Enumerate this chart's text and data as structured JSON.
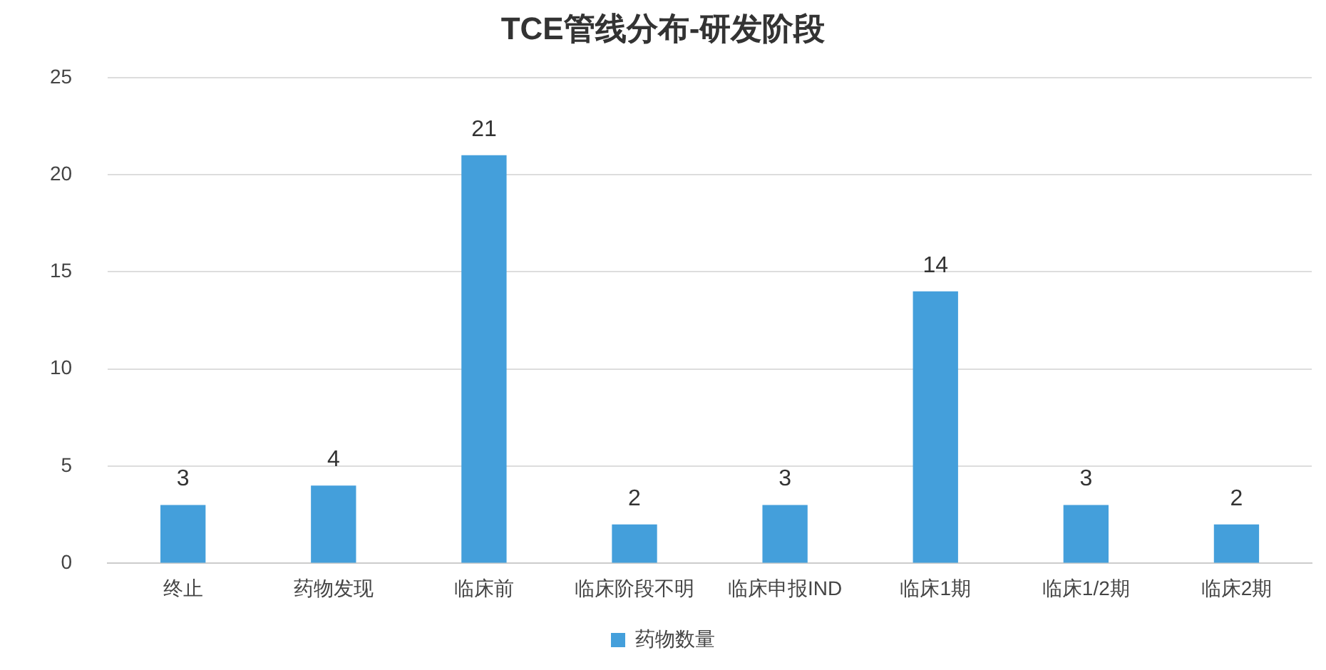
{
  "chart_data": {
    "type": "bar",
    "title": "TCE管线分布-研发阶段",
    "categories": [
      "终止",
      "药物发现",
      "临床前",
      "临床阶段不明",
      "临床申报IND",
      "临床1期",
      "临床1/2期",
      "临床2期"
    ],
    "series": [
      {
        "name": "药物数量",
        "color": "#449fdb",
        "values": [
          3,
          4,
          21,
          2,
          3,
          14,
          3,
          2
        ]
      }
    ],
    "ylim": [
      0,
      25
    ],
    "yticks": [
      0,
      5,
      10,
      15,
      20,
      25
    ],
    "grid": "y",
    "legend": "bottom",
    "data_labels": true
  }
}
